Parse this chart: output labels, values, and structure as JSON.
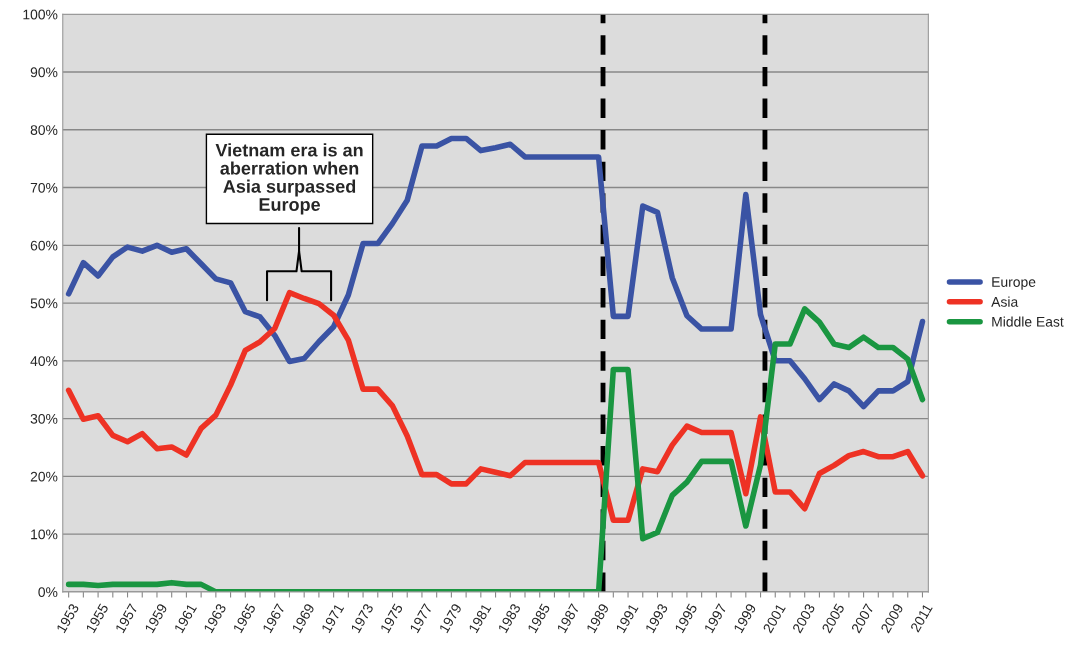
{
  "chart_data": {
    "type": "line",
    "x": [
      1953,
      1954,
      1955,
      1956,
      1957,
      1958,
      1959,
      1960,
      1961,
      1962,
      1963,
      1964,
      1965,
      1966,
      1967,
      1968,
      1969,
      1970,
      1971,
      1972,
      1973,
      1974,
      1975,
      1976,
      1977,
      1978,
      1979,
      1980,
      1981,
      1982,
      1983,
      1984,
      1985,
      1986,
      1987,
      1988,
      1989,
      1990,
      1991,
      1992,
      1993,
      1994,
      1995,
      1996,
      1997,
      1998,
      1999,
      2000,
      2001,
      2002,
      2003,
      2004,
      2005,
      2006,
      2007,
      2008,
      2009,
      2010,
      2011
    ],
    "series": [
      {
        "name": "Europe",
        "color": "#3a53a4",
        "values": [
          51.6,
          57.0,
          54.7,
          58.0,
          59.7,
          59.0,
          60.0,
          58.8,
          59.4,
          56.8,
          54.2,
          53.5,
          48.5,
          47.6,
          44.4,
          39.9,
          40.4,
          43.3,
          45.9,
          51.4,
          60.3,
          60.3,
          63.8,
          67.8,
          77.2,
          77.2,
          78.5,
          78.5,
          76.4,
          76.9,
          77.5,
          75.3,
          75.3,
          75.3,
          75.3,
          75.3,
          75.3,
          47.7,
          47.7,
          66.8,
          65.7,
          54.4,
          47.8,
          45.5,
          45.5,
          45.5,
          68.8,
          48.0,
          40.0,
          40.0,
          36.9,
          33.3,
          36.0,
          34.8,
          32.1,
          34.8,
          34.8,
          36.4,
          46.8
        ]
      },
      {
        "name": "Asia",
        "color": "#ee3224",
        "values": [
          34.9,
          29.9,
          30.5,
          27.1,
          26.0,
          27.4,
          24.8,
          25.1,
          23.7,
          28.3,
          30.6,
          35.8,
          41.8,
          43.3,
          45.6,
          51.8,
          50.8,
          49.9,
          47.9,
          43.6,
          35.1,
          35.1,
          32.2,
          27.0,
          20.3,
          20.3,
          18.7,
          18.7,
          21.3,
          20.7,
          20.1,
          22.4,
          22.4,
          22.4,
          22.4,
          22.4,
          22.4,
          12.4,
          12.4,
          21.3,
          20.8,
          25.4,
          28.7,
          27.6,
          27.6,
          27.6,
          17.0,
          30.3,
          17.3,
          17.3,
          14.4,
          20.5,
          21.9,
          23.6,
          24.3,
          23.4,
          23.4,
          24.3,
          20.1
        ]
      },
      {
        "name": "Middle East",
        "color": "#1a9641",
        "values": [
          1.3,
          1.3,
          1.1,
          1.3,
          1.3,
          1.3,
          1.3,
          1.6,
          1.3,
          1.3,
          0,
          0,
          0,
          0,
          0,
          0,
          0,
          0,
          0,
          0,
          0,
          0,
          0,
          0,
          0,
          0,
          0,
          0,
          0,
          0,
          0,
          0,
          0,
          0,
          0,
          0,
          0,
          38.5,
          38.5,
          9.2,
          10.3,
          16.7,
          19.0,
          22.6,
          22.6,
          22.6,
          11.4,
          22.0,
          42.9,
          42.9,
          49.0,
          46.7,
          42.9,
          42.3,
          44.1,
          42.3,
          42.3,
          40.3,
          33.3
        ]
      }
    ],
    "xlim": [
      1952.6,
      2011.4
    ],
    "xticks": [
      1953,
      {
        "value": 1954,
        "label": null
      },
      1955,
      {
        "value": 1956,
        "label": null
      },
      1957,
      {
        "value": 1958,
        "label": null
      },
      1959,
      {
        "value": 1960,
        "label": null
      },
      1961,
      {
        "value": 1962,
        "label": null
      },
      1963,
      {
        "value": 1964,
        "label": null
      },
      1965,
      {
        "value": 1966,
        "label": null
      },
      1967,
      {
        "value": 1968,
        "label": null
      },
      1969,
      {
        "value": 1970,
        "label": null
      },
      1971,
      {
        "value": 1972,
        "label": null
      },
      1973,
      {
        "value": 1974,
        "label": null
      },
      1975,
      {
        "value": 1976,
        "label": null
      },
      1977,
      {
        "value": 1978,
        "label": null
      },
      1979,
      {
        "value": 1980,
        "label": null
      },
      1981,
      {
        "value": 1982,
        "label": null
      },
      1983,
      {
        "value": 1984,
        "label": null
      },
      1985,
      {
        "value": 1986,
        "label": null
      },
      1987,
      {
        "value": 1988,
        "label": null
      },
      1989,
      {
        "value": 1990,
        "label": null
      },
      1991,
      {
        "value": 1992,
        "label": null
      },
      1993,
      {
        "value": 1994,
        "label": null
      },
      1995,
      {
        "value": 1996,
        "label": null
      },
      1997,
      {
        "value": 1998,
        "label": null
      },
      1999,
      {
        "value": 2000,
        "label": null
      },
      2001,
      {
        "value": 2002,
        "label": null
      },
      2003,
      {
        "value": 2004,
        "label": null
      },
      2005,
      {
        "value": 2006,
        "label": null
      },
      2007,
      {
        "value": 2008,
        "label": null
      },
      2009,
      {
        "value": 2010,
        "label": null
      },
      2011
    ],
    "ylim": [
      0,
      100
    ],
    "yticks": [
      {
        "value": 0,
        "label": "0%"
      },
      {
        "value": 10,
        "label": "10%"
      },
      {
        "value": 20,
        "label": "20%"
      },
      {
        "value": 30,
        "label": "30%"
      },
      {
        "value": 40,
        "label": "40%"
      },
      {
        "value": 50,
        "label": "50%"
      },
      {
        "value": 60,
        "label": "60%"
      },
      {
        "value": 70,
        "label": "70%"
      },
      {
        "value": 80,
        "label": "80%"
      },
      {
        "value": 90,
        "label": "90%"
      },
      {
        "value": 100,
        "label": "100%"
      }
    ],
    "grid": "y",
    "legend": "right",
    "marker": "none",
    "line_style": "solid",
    "ref_lines": [
      {
        "axis": "x",
        "value": 1989.3,
        "color": "#000000",
        "line_style": "dashed"
      },
      {
        "axis": "x",
        "value": 2000.3,
        "color": "#000000",
        "line_style": "dashed"
      }
    ],
    "annotations": [
      "Vietnam era is an\naberration when\nAsia surpassed\nEurope"
    ]
  }
}
